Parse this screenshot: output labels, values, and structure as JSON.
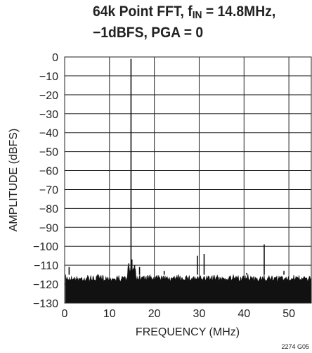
{
  "chart_data": {
    "type": "line",
    "title_line1_prefix": "64k Point FFT, f",
    "title_line1_sub": "IN",
    "title_line1_suffix": " = 14.8MHz,",
    "title_line2": "−1dBFS, PGA = 0",
    "xlabel": "FREQUENCY (MHz)",
    "ylabel": "AMPLITUDE (dBFS)",
    "xlim": [
      0,
      55
    ],
    "ylim": [
      -130,
      0
    ],
    "x_ticks": [
      {
        "value": 0,
        "label": "0"
      },
      {
        "value": 10,
        "label": "10"
      },
      {
        "value": 20,
        "label": "20"
      },
      {
        "value": 30,
        "label": "30"
      },
      {
        "value": 40,
        "label": "40"
      },
      {
        "value": 50,
        "label": "50"
      }
    ],
    "y_ticks": [
      {
        "value": 0,
        "label": "0"
      },
      {
        "value": -10,
        "label": "−10"
      },
      {
        "value": -20,
        "label": "−20"
      },
      {
        "value": -30,
        "label": "−30"
      },
      {
        "value": -40,
        "label": "−40"
      },
      {
        "value": -50,
        "label": "−50"
      },
      {
        "value": -60,
        "label": "−60"
      },
      {
        "value": -70,
        "label": "−70"
      },
      {
        "value": -80,
        "label": "−80"
      },
      {
        "value": -90,
        "label": "−90"
      },
      {
        "value": -100,
        "label": "−100"
      },
      {
        "value": -110,
        "label": "−110"
      },
      {
        "value": -120,
        "label": "−120"
      },
      {
        "value": -130,
        "label": "−130"
      }
    ],
    "grid": true,
    "noise_floor": {
      "x_range": [
        0.2,
        55
      ],
      "top": -116,
      "bottom": -130
    },
    "noise_hump": {
      "x_range": [
        14.0,
        15.8
      ],
      "top": -110
    },
    "peaks": [
      {
        "x": 14.8,
        "y": -1
      },
      {
        "x": 15.0,
        "y": -107
      },
      {
        "x": 14.3,
        "y": -109
      },
      {
        "x": 15.6,
        "y": -110
      },
      {
        "x": 16.7,
        "y": -111
      },
      {
        "x": 1.0,
        "y": -111
      },
      {
        "x": 29.6,
        "y": -105
      },
      {
        "x": 31.1,
        "y": -104
      },
      {
        "x": 44.5,
        "y": -99
      },
      {
        "x": 48.9,
        "y": -113
      },
      {
        "x": 22.2,
        "y": -113
      },
      {
        "x": 40.6,
        "y": -114
      }
    ]
  },
  "figure_code": "2274 G05"
}
